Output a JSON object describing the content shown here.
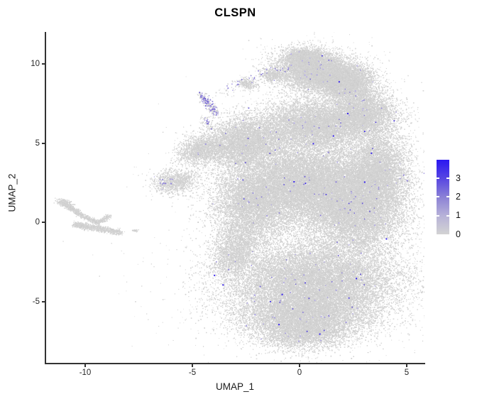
{
  "figure": {
    "title": "CLSPN",
    "background": "#ffffff"
  },
  "chart_data": {
    "type": "scatter",
    "title": "CLSPN",
    "xlabel": "UMAP_1",
    "ylabel": "UMAP_2",
    "xlim": [
      -11.8,
      5.8
    ],
    "ylim": [
      -8.9,
      12.0
    ],
    "xticks": [
      -10,
      -5,
      0,
      5
    ],
    "yticks": [
      -5,
      0,
      5,
      10
    ],
    "xtick_labels": [
      "-10",
      "-5",
      "0",
      "5"
    ],
    "ytick_labels": [
      "-5",
      "0",
      "5",
      "10"
    ],
    "grid": false,
    "axis_color": "#333333",
    "base_point_color": "#d3d3d3",
    "base_point_shades": [
      "#d7d7d7",
      "#d3d3d3",
      "#d0d0d0",
      "#cccccc"
    ],
    "legend": {
      "position": "right",
      "domain": [
        0,
        4
      ],
      "tick_values": [
        0,
        1,
        2,
        3
      ],
      "tick_labels": [
        "0",
        "1",
        "2",
        "3"
      ],
      "color_low": "#d3d3d3",
      "color_mid": "#8b81d6",
      "color_high": "#2a17f2"
    },
    "clusters": [
      {
        "name": "head-core",
        "cx": 0.9,
        "cy": 9.5,
        "sx": 0.95,
        "sy": 0.6,
        "rot": -12,
        "n": 9000,
        "expr": 1
      },
      {
        "name": "head-top",
        "cx": 0.2,
        "cy": 10.4,
        "sx": 0.45,
        "sy": 0.3,
        "rot": 0,
        "n": 1500,
        "expr": 1
      },
      {
        "name": "head-right",
        "cx": 2.3,
        "cy": 8.7,
        "sx": 0.6,
        "sy": 0.55,
        "rot": 0,
        "n": 3000,
        "expr": 1
      },
      {
        "name": "shoulder",
        "cx": 2.9,
        "cy": 6.8,
        "sx": 0.8,
        "sy": 0.7,
        "rot": 0,
        "n": 4500,
        "expr": 1
      },
      {
        "name": "right-edge",
        "cx": 3.6,
        "cy": 3.3,
        "sx": 0.7,
        "sy": 1.2,
        "rot": 0,
        "n": 6000,
        "expr": 1
      },
      {
        "name": "upper-mid",
        "cx": 0.6,
        "cy": 6.1,
        "sx": 1.1,
        "sy": 0.8,
        "rot": 0,
        "n": 7000,
        "expr": 1
      },
      {
        "name": "left-upper",
        "cx": -2.5,
        "cy": 5.1,
        "sx": 1.0,
        "sy": 0.8,
        "rot": 25,
        "n": 6000,
        "expr": 1
      },
      {
        "name": "left-point",
        "cx": -4.6,
        "cy": 4.6,
        "sx": 0.55,
        "sy": 0.4,
        "rot": 20,
        "n": 1600,
        "expr": 1
      },
      {
        "name": "left-spike",
        "cx": -5.8,
        "cy": 2.6,
        "sx": 0.5,
        "sy": 0.35,
        "rot": 10,
        "n": 1100,
        "expr": 1
      },
      {
        "name": "mid-core",
        "cx": 0.4,
        "cy": 2.4,
        "sx": 1.6,
        "sy": 1.2,
        "rot": 0,
        "n": 15000,
        "expr": 1
      },
      {
        "name": "right-mid",
        "cx": 2.6,
        "cy": 0.6,
        "sx": 1.15,
        "sy": 1.3,
        "rot": 0,
        "n": 9000,
        "expr": 1
      },
      {
        "name": "left-mid",
        "cx": -2.2,
        "cy": 1.2,
        "sx": 0.9,
        "sy": 1.2,
        "rot": 0,
        "n": 6000,
        "expr": 1
      },
      {
        "name": "left-low-wisp",
        "cx": -3.0,
        "cy": -1.7,
        "sx": 0.55,
        "sy": 0.9,
        "rot": -15,
        "n": 2200,
        "expr": 1
      },
      {
        "name": "bell",
        "cx": 0.6,
        "cy": -3.7,
        "sx": 2.0,
        "sy": 1.25,
        "rot": 0,
        "n": 16000,
        "expr": 1
      },
      {
        "name": "bottom-cap",
        "cx": 0.2,
        "cy": -5.9,
        "sx": 1.55,
        "sy": 0.8,
        "rot": 0,
        "n": 7000,
        "expr": 1
      },
      {
        "name": "bottom-tip",
        "cx": 0.1,
        "cy": -7.0,
        "sx": 0.95,
        "sy": 0.5,
        "rot": 0,
        "n": 2200,
        "expr": 1
      },
      {
        "name": "trail-clump-a",
        "cx": -1.3,
        "cy": 9.3,
        "sx": 0.3,
        "sy": 0.2,
        "rot": -20,
        "n": 420,
        "expr": 0
      },
      {
        "name": "trail-clump-b",
        "cx": -2.45,
        "cy": 8.75,
        "sx": 0.25,
        "sy": 0.17,
        "rot": -20,
        "n": 260,
        "expr": 0
      },
      {
        "name": "island-head",
        "cx": -11.0,
        "cy": 1.25,
        "sx": 0.18,
        "sy": 0.1,
        "rot": -25,
        "n": 260,
        "expr": 0
      },
      {
        "name": "island-dot",
        "cx": -7.7,
        "cy": -0.5,
        "sx": 0.07,
        "sy": 0.05,
        "rot": 0,
        "n": 25,
        "expr": 0
      }
    ],
    "grey_strokes": [
      {
        "name": "island-neck",
        "x1": -11.0,
        "y1": 1.25,
        "x2": -10.15,
        "y2": 0.45,
        "w": 0.07,
        "n": 520
      },
      {
        "name": "island-body",
        "x1": -10.5,
        "y1": -0.1,
        "x2": -8.35,
        "y2": -0.6,
        "w": 0.09,
        "n": 950
      },
      {
        "name": "island-mid",
        "x1": -10.15,
        "y1": 0.45,
        "x2": -9.4,
        "y2": 0.0,
        "w": 0.07,
        "n": 260
      },
      {
        "name": "island-spur",
        "x1": -9.4,
        "y1": 0.0,
        "x2": -8.85,
        "y2": 0.45,
        "w": 0.06,
        "n": 170
      },
      {
        "name": "streak-grey",
        "x1": -4.62,
        "y1": 8.1,
        "x2": -3.88,
        "y2": 6.85,
        "w": 0.12,
        "n": 170
      },
      {
        "name": "trail-grey",
        "x1": -3.75,
        "y1": 8.2,
        "x2": -0.6,
        "y2": 9.8,
        "w": 0.2,
        "n": 85
      },
      {
        "name": "below-streak-grey",
        "x1": -4.55,
        "y1": 6.6,
        "x2": -4.15,
        "y2": 5.9,
        "w": 0.1,
        "n": 45
      }
    ],
    "purple_strokes": [
      {
        "name": "streak-purple",
        "x1": -4.6,
        "y1": 8.05,
        "x2": -3.9,
        "y2": 6.9,
        "w": 0.11,
        "n": 95
      },
      {
        "name": "trail-purple",
        "x1": -3.7,
        "y1": 8.25,
        "x2": -0.7,
        "y2": 9.8,
        "w": 0.16,
        "n": 30
      },
      {
        "name": "below-streak-purple",
        "x1": -4.5,
        "y1": 6.55,
        "x2": -4.2,
        "y2": 6.0,
        "w": 0.09,
        "n": 12
      }
    ],
    "purple_clusters": [
      {
        "name": "spike-dots",
        "cx": -6.25,
        "cy": 2.55,
        "sx": 0.18,
        "sy": 0.12,
        "n": 9
      }
    ],
    "expression_dots": {
      "count": 280,
      "sigma_scale": 0.85,
      "palette": [
        {
          "color": "#b6aee5",
          "weight": 0.42
        },
        {
          "color": "#a198df",
          "weight": 0.25
        },
        {
          "color": "#8b7ed9",
          "weight": 0.15
        },
        {
          "color": "#7365d4",
          "weight": 0.09
        },
        {
          "color": "#5444dd",
          "weight": 0.06
        },
        {
          "color": "#2f1bee",
          "weight": 0.03
        }
      ]
    },
    "purple_mix_palette": [
      "#a89de2",
      "#978bdc",
      "#8476d6",
      "#6e5fd0"
    ],
    "highlight_dots": {
      "color": "#3a26ee",
      "points": [
        [
          -3.6,
          -3.9
        ],
        [
          -1.0,
          -6.4
        ],
        [
          -0.85,
          -4.5
        ],
        [
          2.6,
          -3.5
        ],
        [
          0.6,
          5.0
        ],
        [
          3.3,
          4.4
        ],
        [
          1.8,
          8.9
        ],
        [
          4.0,
          -1.0
        ],
        [
          -0.3,
          2.6
        ],
        [
          -4.0,
          -3.3
        ],
        [
          0.9,
          -7.0
        ],
        [
          2.2,
          6.9
        ]
      ]
    }
  }
}
